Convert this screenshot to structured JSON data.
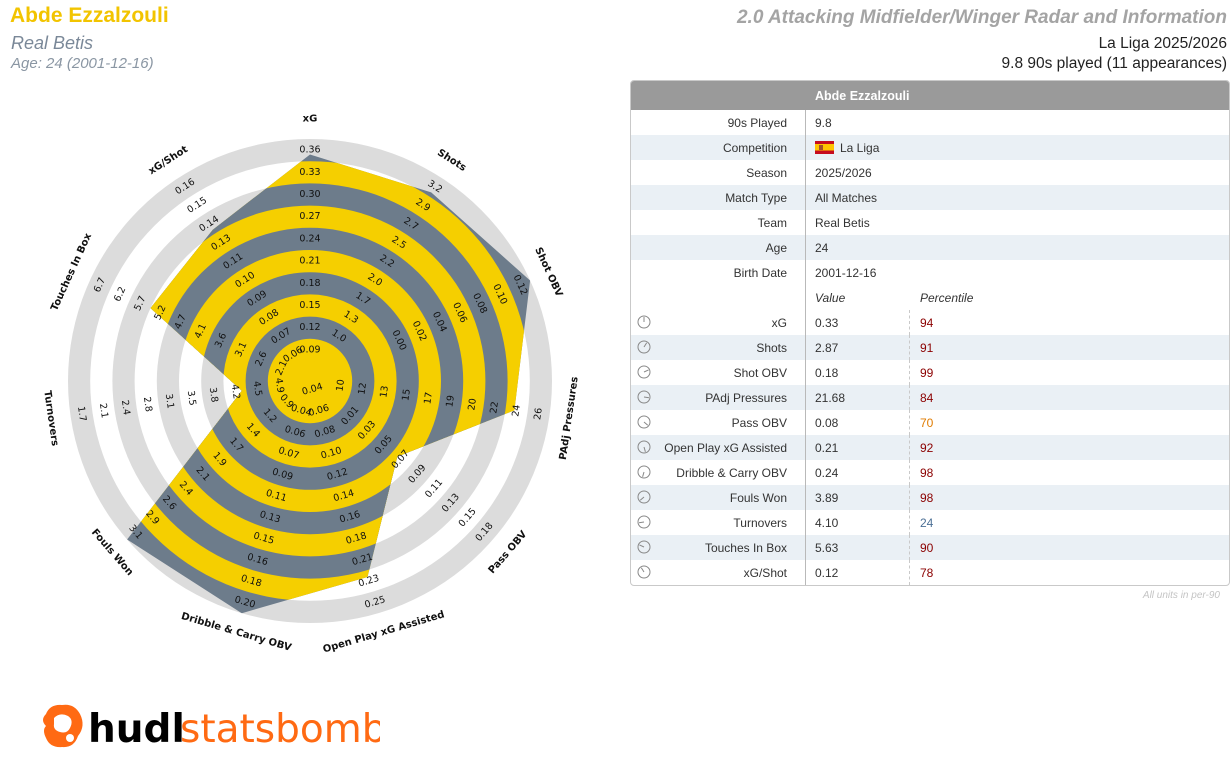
{
  "header": {
    "player_name": "Abde Ezzalzouli",
    "team": "Real Betis",
    "age_line": "Age: 24 (2001-12-16)",
    "report_title": "2.0 Attacking Midfielder/Winger Radar and Information",
    "competition_line": "La Liga 2025/2026",
    "nineties_line": "9.8 90s played (11 appearances)"
  },
  "colors": {
    "accent_yellow": "#f5cf00",
    "slate": "#6d7c8b",
    "ring_grey": "#dcdcdc",
    "pct_high": "#8b0000",
    "pct_mid": "#e07b00",
    "pct_low": "#4b6f95",
    "logo_orange": "#ff6a13"
  },
  "chart_data": {
    "type": "radar",
    "player": "Abde Ezzalzouli",
    "metrics": [
      {
        "name": "xG",
        "ticks": [
          "0.09",
          "0.12",
          "0.15",
          "0.18",
          "0.21",
          "0.24",
          "0.27",
          "0.30",
          "0.33",
          "0.36"
        ],
        "value": 0.33,
        "percentile": 94
      },
      {
        "name": "Shots",
        "ticks": [
          "1.0",
          "1.3",
          "1.7",
          "2.0",
          "2.2",
          "2.5",
          "2.7",
          "2.9",
          "3.2"
        ],
        "value": 2.87,
        "percentile": 91
      },
      {
        "name": "Shot OBV",
        "ticks": [
          "0.00",
          "0.02",
          "0.04",
          "0.06",
          "0.08",
          "0.10",
          "0.12"
        ],
        "value": 0.18,
        "percentile": 99
      },
      {
        "name": "PAdj Pressures",
        "ticks": [
          "10",
          "12",
          "13",
          "15",
          "17",
          "19",
          "20",
          "22",
          "24",
          "26"
        ],
        "value": 21.68,
        "percentile": 84
      },
      {
        "name": "Pass OBV",
        "ticks": [
          "0.01",
          "0.03",
          "0.05",
          "0.07",
          "0.09",
          "0.11",
          "0.13",
          "0.15",
          "0.18"
        ],
        "value": 0.08,
        "percentile": 70
      },
      {
        "name": "Open Play xG Assisted",
        "ticks": [
          "0.04",
          "0.06",
          "0.08",
          "0.10",
          "0.12",
          "0.14",
          "0.16",
          "0.18",
          "0.21",
          "0.23",
          "0.25"
        ],
        "value": 0.21,
        "percentile": 92
      },
      {
        "name": "Dribble & Carry OBV",
        "ticks": [
          "0.04",
          "0.06",
          "0.07",
          "0.09",
          "0.11",
          "0.13",
          "0.15",
          "0.16",
          "0.18",
          "0.20"
        ],
        "value": 0.24,
        "percentile": 98
      },
      {
        "name": "Fouls Won",
        "ticks": [
          "0.9",
          "1.2",
          "1.4",
          "1.7",
          "1.9",
          "2.1",
          "2.4",
          "2.6",
          "2.9",
          "3.1"
        ],
        "value": 3.89,
        "percentile": 98
      },
      {
        "name": "Turnovers",
        "ticks": [
          "4.9",
          "4.5",
          "4.2",
          "3.8",
          "3.5",
          "3.1",
          "2.8",
          "2.4",
          "2.1",
          "1.7"
        ],
        "value": 4.1,
        "percentile": 24
      },
      {
        "name": "Touches In Box",
        "ticks": [
          "2.1",
          "2.6",
          "3.1",
          "3.6",
          "4.1",
          "4.7",
          "5.2",
          "5.7",
          "6.2",
          "6.7"
        ],
        "value": 5.63,
        "percentile": 90
      },
      {
        "name": "xG/Shot",
        "ticks": [
          "0.06",
          "0.07",
          "0.08",
          "0.09",
          "0.10",
          "0.11",
          "0.13",
          "0.14",
          "0.15",
          "0.16"
        ],
        "value": 0.12,
        "percentile": 78
      }
    ],
    "radius_fraction": [
      0.93,
      0.92,
      1.0,
      0.84,
      0.43,
      0.83,
      1.0,
      1.0,
      0.22,
      0.7,
      0.72
    ],
    "grid": "alternating yellow and slate rings"
  },
  "table": {
    "title": "Abde Ezzalzouli",
    "info_rows": [
      {
        "label": "90s Played",
        "value": "9.8"
      },
      {
        "label": "Competition",
        "value": "La Liga"
      },
      {
        "label": "Season",
        "value": "2025/2026"
      },
      {
        "label": "Match Type",
        "value": "All Matches"
      },
      {
        "label": "Team",
        "value": "Real Betis"
      },
      {
        "label": "Age",
        "value": "24"
      },
      {
        "label": "Birth Date",
        "value": "2001-12-16"
      }
    ],
    "col_value": "Value",
    "col_percentile": "Percentile",
    "metric_rows": [
      {
        "label": "xG",
        "value": "0.33",
        "percentile": "94",
        "color": "#8b0000"
      },
      {
        "label": "Shots",
        "value": "2.87",
        "percentile": "91",
        "color": "#8b0000"
      },
      {
        "label": "Shot OBV",
        "value": "0.18",
        "percentile": "99",
        "color": "#8b0000"
      },
      {
        "label": "PAdj Pressures",
        "value": "21.68",
        "percentile": "84",
        "color": "#8b0000"
      },
      {
        "label": "Pass OBV",
        "value": "0.08",
        "percentile": "70",
        "color": "#e07b00"
      },
      {
        "label": "Open Play xG Assisted",
        "value": "0.21",
        "percentile": "92",
        "color": "#8b0000"
      },
      {
        "label": "Dribble & Carry OBV",
        "value": "0.24",
        "percentile": "98",
        "color": "#8b0000"
      },
      {
        "label": "Fouls Won",
        "value": "3.89",
        "percentile": "98",
        "color": "#8b0000"
      },
      {
        "label": "Turnovers",
        "value": "4.10",
        "percentile": "24",
        "color": "#4b6f95"
      },
      {
        "label": "Touches In Box",
        "value": "5.63",
        "percentile": "90",
        "color": "#8b0000"
      },
      {
        "label": "xG/Shot",
        "value": "0.12",
        "percentile": "78",
        "color": "#8b0000"
      }
    ],
    "units_note": "All units in per-90"
  },
  "logo": {
    "text_bold": "hudl",
    "text_light": "statsbomb",
    "icon": "statsbomb-logo-icon"
  }
}
